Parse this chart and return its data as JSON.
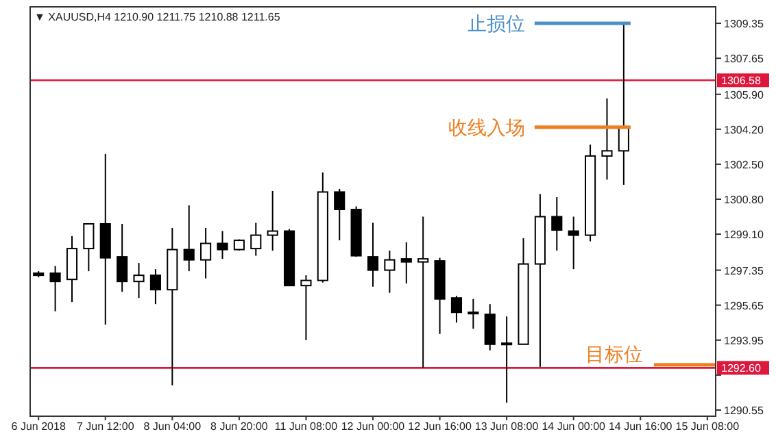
{
  "chart_data": {
    "type": "candlestick",
    "title": "▼ XAUUSD,H4 1210.90 1211.75 1210.88 1211.65",
    "categories": [
      "6 Jun 2018",
      null,
      null,
      null,
      "7 Jun 12:00",
      null,
      null,
      null,
      "8 Jun 04:00",
      null,
      null,
      null,
      "8 Jun 20:00",
      null,
      null,
      null,
      "11 Jun 08:00",
      null,
      null,
      null,
      "12 Jun 00:00",
      null,
      null,
      null,
      "12 Jun 16:00",
      null,
      null,
      null,
      "13 Jun 08:00",
      null,
      null,
      null,
      "14 Jun 00:00",
      null,
      null,
      null,
      "14 Jun 16:00",
      null,
      null,
      null,
      "15 Jun 08:00"
    ],
    "ohlc": [
      [
        1297.2,
        1297.3,
        1297.0,
        1297.1
      ],
      [
        1297.2,
        1297.55,
        1295.35,
        1296.8
      ],
      [
        1296.9,
        1299.0,
        1295.8,
        1298.4
      ],
      [
        1298.4,
        1299.6,
        1297.3,
        1299.6
      ],
      [
        1299.6,
        1303.0,
        1294.7,
        1297.95
      ],
      [
        1298.0,
        1299.6,
        1296.3,
        1296.8
      ],
      [
        1296.8,
        1297.7,
        1296.0,
        1297.1
      ],
      [
        1297.1,
        1297.4,
        1295.7,
        1296.4
      ],
      [
        1296.4,
        1299.4,
        1291.75,
        1298.35
      ],
      [
        1298.35,
        1300.5,
        1297.3,
        1297.85
      ],
      [
        1297.85,
        1299.4,
        1296.95,
        1298.65
      ],
      [
        1298.65,
        1299.25,
        1297.9,
        1298.35
      ],
      [
        1298.35,
        1298.85,
        1298.3,
        1298.8
      ],
      [
        1298.4,
        1299.65,
        1298.05,
        1299.05
      ],
      [
        1299.05,
        1301.2,
        1298.3,
        1299.25
      ],
      [
        1299.25,
        1299.35,
        1296.6,
        1296.6
      ],
      [
        1296.6,
        1297.1,
        1293.95,
        1296.85
      ],
      [
        1296.85,
        1302.1,
        1296.75,
        1301.15
      ],
      [
        1301.15,
        1301.3,
        1298.8,
        1300.3
      ],
      [
        1300.3,
        1300.45,
        1298.0,
        1298.05
      ],
      [
        1298.0,
        1299.65,
        1296.55,
        1297.35
      ],
      [
        1297.35,
        1298.3,
        1296.25,
        1297.85
      ],
      [
        1297.9,
        1298.7,
        1296.7,
        1297.75
      ],
      [
        1297.75,
        1299.95,
        1292.6,
        1297.9
      ],
      [
        1297.8,
        1297.95,
        1294.25,
        1295.95
      ],
      [
        1296.0,
        1296.1,
        1294.8,
        1295.3
      ],
      [
        1295.3,
        1295.95,
        1294.5,
        1295.25
      ],
      [
        1295.2,
        1295.7,
        1293.45,
        1293.75
      ],
      [
        1293.8,
        1295.1,
        1290.9,
        1293.8
      ],
      [
        1293.75,
        1298.9,
        1293.75,
        1297.65
      ],
      [
        1297.65,
        1301.05,
        1292.65,
        1299.95
      ],
      [
        1299.95,
        1300.9,
        1298.3,
        1299.3
      ],
      [
        1299.25,
        1299.95,
        1297.4,
        1299.05
      ],
      [
        1299.05,
        1303.45,
        1298.75,
        1302.9
      ],
      [
        1302.9,
        1305.7,
        1301.75,
        1303.15
      ],
      [
        1303.15,
        1309.3,
        1301.5,
        1304.3
      ],
      null,
      null,
      null,
      null,
      null
    ],
    "ylim": [
      1290.25,
      1310.15
    ],
    "yticks": [
      1309.35,
      1307.65,
      {
        "value": 1305.9,
        "label": "1305.90"
      },
      {
        "value": 1304.2,
        "label": "1304.20"
      },
      {
        "value": 1302.5,
        "label": "1302.50"
      },
      {
        "value": 1300.8,
        "label": "1300.80"
      },
      {
        "value": 1299.1,
        "label": "1299.10"
      },
      1297.35,
      1295.65,
      1293.95,
      {
        "value": 1292.25,
        "label": null
      },
      1290.55
    ],
    "ref_lines": [
      {
        "axis": "y",
        "value": 1306.58,
        "label": "1306.58",
        "color": "#e0173c"
      },
      {
        "axis": "y",
        "value": 1292.6,
        "label": "1292.60",
        "color": "#e0173c"
      }
    ],
    "bands": [
      {
        "axis": "y",
        "from": 1309.35,
        "to": 1309.35,
        "label": "止损位",
        "color": "#4a8fc8"
      },
      {
        "axis": "y",
        "from": 1304.3,
        "to": 1304.3,
        "label": "收线入场",
        "color": "#ee7f1f"
      },
      {
        "axis": "y",
        "from": 1292.75,
        "to": 1292.75,
        "label": "目标位",
        "color": "#ee7f1f"
      }
    ],
    "grid": false
  }
}
